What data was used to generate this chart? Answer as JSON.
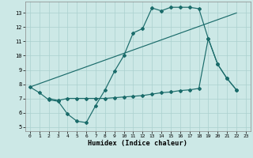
{
  "xlabel": "Humidex (Indice chaleur)",
  "bg_color": "#cce8e6",
  "grid_color": "#aad0ce",
  "line_color": "#1a6b6a",
  "xlim": [
    -0.5,
    23.5
  ],
  "ylim": [
    4.7,
    13.8
  ],
  "yticks": [
    5,
    6,
    7,
    8,
    9,
    10,
    11,
    12,
    13
  ],
  "xticks": [
    0,
    1,
    2,
    3,
    4,
    5,
    6,
    7,
    8,
    9,
    10,
    11,
    12,
    13,
    14,
    15,
    16,
    17,
    18,
    19,
    20,
    21,
    22,
    23
  ],
  "series1_x": [
    0,
    1,
    2,
    3,
    4,
    5,
    6,
    7,
    8,
    9,
    10,
    11,
    12,
    13,
    14,
    15,
    16,
    17,
    18,
    19,
    20,
    21,
    22
  ],
  "series1_y": [
    7.8,
    7.4,
    6.9,
    6.8,
    5.9,
    5.4,
    5.3,
    6.5,
    7.6,
    8.9,
    10.0,
    11.6,
    11.9,
    13.35,
    13.15,
    13.4,
    13.4,
    13.4,
    13.3,
    11.2,
    9.4,
    8.4,
    7.6
  ],
  "series2_x": [
    2,
    3,
    4,
    5,
    6,
    7,
    8,
    9,
    10,
    11,
    12,
    13,
    14,
    15,
    16,
    17,
    18,
    19,
    20,
    21,
    22
  ],
  "series2_y": [
    7.0,
    6.85,
    7.0,
    7.0,
    7.0,
    7.0,
    7.0,
    7.05,
    7.1,
    7.15,
    7.2,
    7.3,
    7.4,
    7.45,
    7.55,
    7.6,
    7.7,
    11.2,
    9.4,
    8.4,
    7.6
  ],
  "series3_x": [
    0,
    22
  ],
  "series3_y": [
    7.8,
    13.0
  ]
}
